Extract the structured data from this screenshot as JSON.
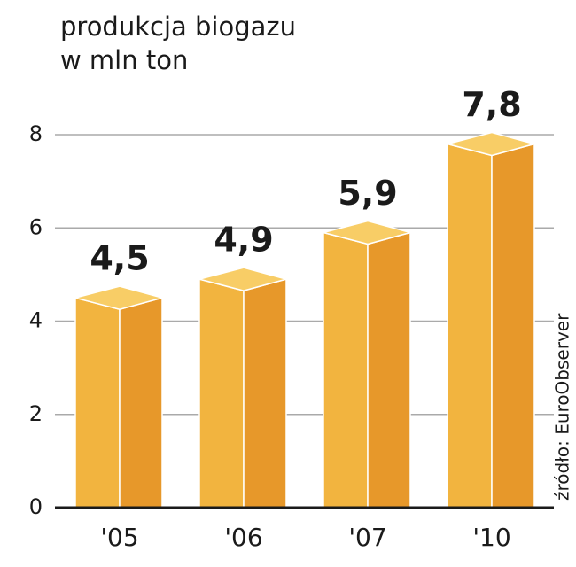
{
  "chart_data": {
    "type": "bar",
    "title": "produkcja biogazu",
    "subtitle": "w mln ton",
    "categories": [
      "'05",
      "'06",
      "'07",
      "'10"
    ],
    "values": [
      4.5,
      4.9,
      5.9,
      7.8
    ],
    "value_labels": [
      "4,5",
      "4,9",
      "5,9",
      "7,8"
    ],
    "color": "#f2b43f",
    "ylim": [
      0,
      8
    ],
    "yticks": [
      0,
      2,
      4,
      6,
      8
    ],
    "grid": true,
    "source": "źródło: EuroObserver"
  }
}
